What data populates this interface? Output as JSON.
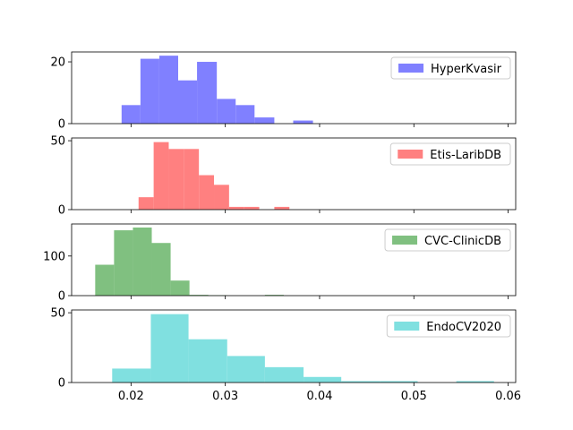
{
  "chart_data": [
    {
      "type": "bar",
      "name": "HyperKvasir",
      "color": "#8080ff",
      "xlim": [
        0.0137,
        0.0608
      ],
      "ylim": [
        0,
        23.2
      ],
      "yticks": [
        0,
        20
      ],
      "show_xtick_labels": false,
      "legend_position": "upper-right",
      "bins": [
        {
          "x0": 0.019,
          "x1": 0.021,
          "value": 6
        },
        {
          "x0": 0.021,
          "x1": 0.023,
          "value": 21
        },
        {
          "x0": 0.023,
          "x1": 0.025,
          "value": 22
        },
        {
          "x0": 0.025,
          "x1": 0.027,
          "value": 14
        },
        {
          "x0": 0.027,
          "x1": 0.0291,
          "value": 20
        },
        {
          "x0": 0.0291,
          "x1": 0.0311,
          "value": 8
        },
        {
          "x0": 0.0311,
          "x1": 0.0331,
          "value": 6
        },
        {
          "x0": 0.0331,
          "x1": 0.0352,
          "value": 2
        },
        {
          "x0": 0.0352,
          "x1": 0.0372,
          "value": 0
        },
        {
          "x0": 0.0372,
          "x1": 0.0393,
          "value": 1
        }
      ]
    },
    {
      "type": "bar",
      "name": "Etis-LaribDB",
      "color": "#ff8080",
      "xlim": [
        0.0137,
        0.0608
      ],
      "ylim": [
        0,
        52
      ],
      "yticks": [
        0,
        50
      ],
      "show_xtick_labels": false,
      "legend_position": "upper-right",
      "bins": [
        {
          "x0": 0.0208,
          "x1": 0.0224,
          "value": 9
        },
        {
          "x0": 0.0224,
          "x1": 0.024,
          "value": 49
        },
        {
          "x0": 0.024,
          "x1": 0.0256,
          "value": 44
        },
        {
          "x0": 0.0256,
          "x1": 0.0272,
          "value": 44
        },
        {
          "x0": 0.0272,
          "x1": 0.0288,
          "value": 25
        },
        {
          "x0": 0.0288,
          "x1": 0.0304,
          "value": 18
        },
        {
          "x0": 0.0304,
          "x1": 0.032,
          "value": 2
        },
        {
          "x0": 0.032,
          "x1": 0.0336,
          "value": 2
        },
        {
          "x0": 0.0336,
          "x1": 0.0352,
          "value": 0
        },
        {
          "x0": 0.0352,
          "x1": 0.0368,
          "value": 2
        }
      ]
    },
    {
      "type": "bar",
      "name": "CVC-ClinicDB",
      "color": "#80c080",
      "xlim": [
        0.0137,
        0.0608
      ],
      "ylim": [
        0,
        181
      ],
      "yticks": [
        0,
        100
      ],
      "show_xtick_labels": false,
      "legend_position": "upper-right",
      "bins": [
        {
          "x0": 0.0162,
          "x1": 0.0182,
          "value": 78
        },
        {
          "x0": 0.0182,
          "x1": 0.0202,
          "value": 165
        },
        {
          "x0": 0.0202,
          "x1": 0.0222,
          "value": 172
        },
        {
          "x0": 0.0222,
          "x1": 0.0242,
          "value": 133
        },
        {
          "x0": 0.0242,
          "x1": 0.0262,
          "value": 38
        },
        {
          "x0": 0.0262,
          "x1": 0.0282,
          "value": 2
        },
        {
          "x0": 0.0282,
          "x1": 0.0302,
          "value": 1
        },
        {
          "x0": 0.0302,
          "x1": 0.0322,
          "value": 0
        },
        {
          "x0": 0.0322,
          "x1": 0.0342,
          "value": 0
        },
        {
          "x0": 0.0342,
          "x1": 0.0362,
          "value": 2
        }
      ]
    },
    {
      "type": "bar",
      "name": "EndoCV2020",
      "color": "#80e0e0",
      "xlim": [
        0.0137,
        0.0608
      ],
      "ylim": [
        0,
        52
      ],
      "yticks": [
        0,
        50
      ],
      "xticks": [
        0.02,
        0.03,
        0.04,
        0.05,
        0.06
      ],
      "xtick_labels": [
        "0.02",
        "0.03",
        "0.04",
        "0.05",
        "0.06"
      ],
      "show_xtick_labels": true,
      "legend_position": "upper-right",
      "bins": [
        {
          "x0": 0.018,
          "x1": 0.0221,
          "value": 10
        },
        {
          "x0": 0.0221,
          "x1": 0.0261,
          "value": 49
        },
        {
          "x0": 0.0261,
          "x1": 0.0302,
          "value": 31
        },
        {
          "x0": 0.0302,
          "x1": 0.0342,
          "value": 19
        },
        {
          "x0": 0.0342,
          "x1": 0.0383,
          "value": 11
        },
        {
          "x0": 0.0383,
          "x1": 0.0423,
          "value": 4
        },
        {
          "x0": 0.0423,
          "x1": 0.0464,
          "value": 1
        },
        {
          "x0": 0.0464,
          "x1": 0.0504,
          "value": 1
        },
        {
          "x0": 0.0504,
          "x1": 0.0545,
          "value": 0
        },
        {
          "x0": 0.0545,
          "x1": 0.0585,
          "value": 1
        }
      ]
    }
  ]
}
